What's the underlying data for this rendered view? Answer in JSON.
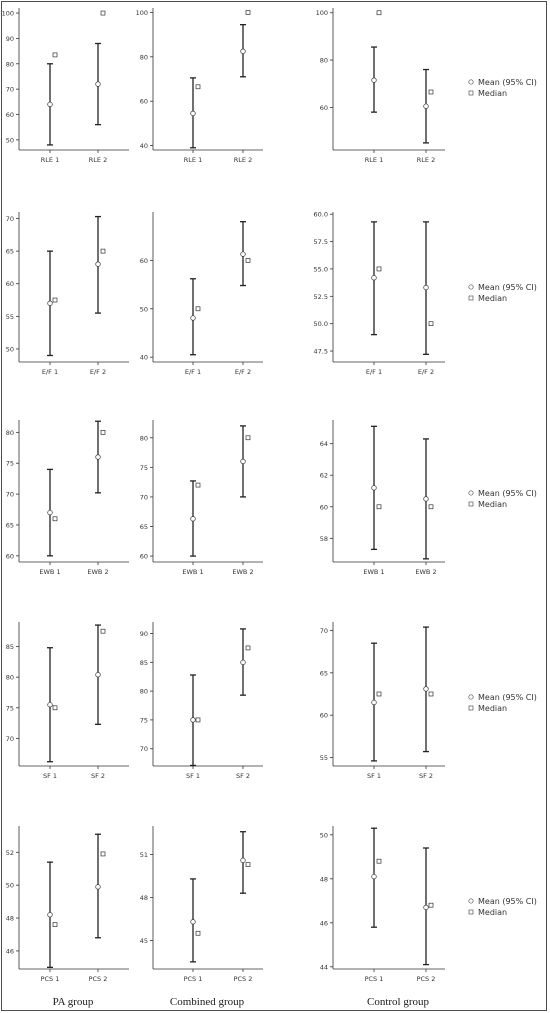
{
  "legend": {
    "mean_label": "Mean (95% CI)",
    "median_label": "Median"
  },
  "group_labels": [
    "PA group",
    "Combined group",
    "Control group"
  ],
  "chart_data": [
    {
      "type": "errorbar",
      "categories": [
        "RLE 1",
        "RLE 2"
      ],
      "panels": [
        {
          "group": "PA group",
          "ylim": [
            46,
            102
          ],
          "yticks": [
            50,
            60,
            70,
            80,
            90,
            100
          ],
          "ci_low": [
            48,
            56
          ],
          "ci_high": [
            80,
            88
          ],
          "mean": [
            64,
            72
          ],
          "median": [
            83.5,
            100
          ]
        },
        {
          "group": "Combined group",
          "ylim": [
            38,
            102
          ],
          "yticks": [
            40,
            60,
            80,
            100
          ],
          "ci_low": [
            39,
            71
          ],
          "ci_high": [
            70.5,
            94.5
          ],
          "mean": [
            54.5,
            82.5
          ],
          "median": [
            66.5,
            100
          ]
        },
        {
          "group": "Control group",
          "ylim": [
            42,
            102
          ],
          "yticks": [
            60,
            80,
            100
          ],
          "ci_low": [
            58,
            45
          ],
          "ci_high": [
            85.5,
            76
          ],
          "mean": [
            71.5,
            60.5
          ],
          "median": [
            100,
            66.5
          ]
        }
      ]
    },
    {
      "type": "errorbar",
      "categories": [
        "E/F 1",
        "E/F 2"
      ],
      "panels": [
        {
          "group": "PA group",
          "ylim": [
            48,
            71
          ],
          "yticks": [
            50,
            55,
            60,
            65,
            70
          ],
          "ci_low": [
            49,
            55.5
          ],
          "ci_high": [
            65,
            70.3
          ],
          "mean": [
            57,
            63
          ],
          "median": [
            57.5,
            65
          ]
        },
        {
          "group": "Combined group",
          "ylim": [
            39,
            70
          ],
          "yticks": [
            40,
            50,
            60
          ],
          "ci_low": [
            40.5,
            54.8
          ],
          "ci_high": [
            56.2,
            68
          ],
          "mean": [
            48.1,
            61.3
          ],
          "median": [
            50,
            60
          ]
        },
        {
          "group": "Control group",
          "ylim": [
            46.5,
            60.2
          ],
          "yticks": [
            47.5,
            50.0,
            52.5,
            55.0,
            57.5,
            60.0
          ],
          "ci_low": [
            49,
            47.2
          ],
          "ci_high": [
            59.3,
            59.3
          ],
          "mean": [
            54.2,
            53.3
          ],
          "median": [
            55,
            50
          ]
        }
      ]
    },
    {
      "type": "errorbar",
      "categories": [
        "EWB 1",
        "EWB 2"
      ],
      "panels": [
        {
          "group": "PA group",
          "ylim": [
            59,
            82
          ],
          "yticks": [
            60,
            65,
            70,
            75,
            80
          ],
          "ci_low": [
            60,
            70.2
          ],
          "ci_high": [
            74,
            81.8
          ],
          "mean": [
            67,
            76
          ],
          "median": [
            66,
            80
          ]
        },
        {
          "group": "Combined group",
          "ylim": [
            59,
            83
          ],
          "yticks": [
            60,
            65,
            70,
            75,
            80
          ],
          "ci_low": [
            60,
            70
          ],
          "ci_high": [
            72.7,
            82
          ],
          "mean": [
            66.3,
            76
          ],
          "median": [
            72,
            80
          ]
        },
        {
          "group": "Control group",
          "ylim": [
            56.5,
            65.5
          ],
          "yticks": [
            58,
            60,
            62,
            64
          ],
          "ci_low": [
            57.3,
            56.7
          ],
          "ci_high": [
            65.1,
            64.3
          ],
          "mean": [
            61.2,
            60.5
          ],
          "median": [
            60,
            60
          ]
        }
      ]
    },
    {
      "type": "errorbar",
      "categories": [
        "SF 1",
        "SF 2"
      ],
      "panels": [
        {
          "group": "PA group",
          "ylim": [
            65.5,
            89
          ],
          "yticks": [
            70,
            75,
            80,
            85
          ],
          "ci_low": [
            66.2,
            72.3
          ],
          "ci_high": [
            84.8,
            88.5
          ],
          "mean": [
            75.5,
            80.4
          ],
          "median": [
            75,
            87.5
          ]
        },
        {
          "group": "Combined group",
          "ylim": [
            67,
            92
          ],
          "yticks": [
            70,
            75,
            80,
            85,
            90
          ],
          "ci_low": [
            67.1,
            79.3
          ],
          "ci_high": [
            82.8,
            90.8
          ],
          "mean": [
            75,
            85
          ],
          "median": [
            75,
            87.5
          ]
        },
        {
          "group": "Control group",
          "ylim": [
            54,
            71
          ],
          "yticks": [
            55,
            60,
            65,
            70
          ],
          "ci_low": [
            54.6,
            55.7
          ],
          "ci_high": [
            68.5,
            70.4
          ],
          "mean": [
            61.5,
            63.1
          ],
          "median": [
            62.5,
            62.5
          ]
        }
      ]
    },
    {
      "type": "errorbar",
      "categories": [
        "PCS 1",
        "PCS 2"
      ],
      "panels": [
        {
          "group": "PA group",
          "ylim": [
            44.9,
            53.6
          ],
          "yticks": [
            46,
            48,
            50,
            52
          ],
          "ci_low": [
            45,
            46.8
          ],
          "ci_high": [
            51.4,
            53.1
          ],
          "mean": [
            48.2,
            49.9
          ],
          "median": [
            47.6,
            51.9
          ]
        },
        {
          "group": "Combined group",
          "ylim": [
            43,
            53
          ],
          "yticks": [
            45,
            48,
            51
          ],
          "ci_low": [
            43.5,
            48.3
          ],
          "ci_high": [
            49.3,
            52.6
          ],
          "mean": [
            46.3,
            50.6
          ],
          "median": [
            45.5,
            50.3
          ]
        },
        {
          "group": "Control group",
          "ylim": [
            43.9,
            50.4
          ],
          "yticks": [
            44,
            46,
            48,
            50
          ],
          "ci_low": [
            45.8,
            44.1
          ],
          "ci_high": [
            50.3,
            49.4
          ],
          "mean": [
            48.1,
            46.7
          ],
          "median": [
            48.8,
            46.8
          ]
        }
      ]
    }
  ]
}
